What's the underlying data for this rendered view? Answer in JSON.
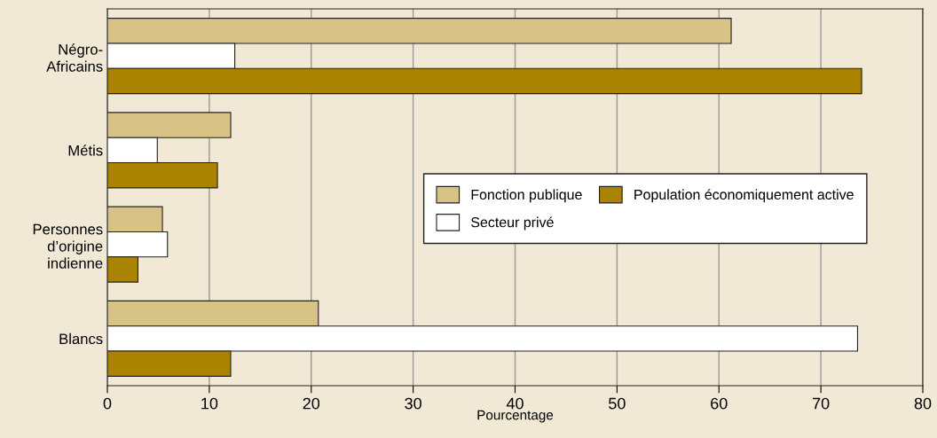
{
  "chart_data": {
    "type": "bar",
    "orientation": "horizontal",
    "xlabel": "Pourcentage",
    "categories": [
      "Négro-\nAfricains",
      "Métis",
      "Personnes\nd’origine\nindienne",
      "Blancs"
    ],
    "series": [
      {
        "name": "Fonction publique",
        "color": "#d8c386",
        "values": [
          61.2,
          12.1,
          5.4,
          20.7
        ]
      },
      {
        "name": "Secteur privé",
        "color": "#ffffff",
        "values": [
          12.5,
          4.9,
          5.9,
          73.6
        ]
      },
      {
        "name": "Population économiquement active",
        "color": "#ab8302",
        "values": [
          74.0,
          10.8,
          3.0,
          12.1
        ]
      }
    ],
    "xlim": [
      0,
      80
    ],
    "xticks": [
      0,
      10,
      20,
      30,
      40,
      50,
      60,
      70,
      80
    ],
    "grid": "x",
    "legend": "right"
  }
}
